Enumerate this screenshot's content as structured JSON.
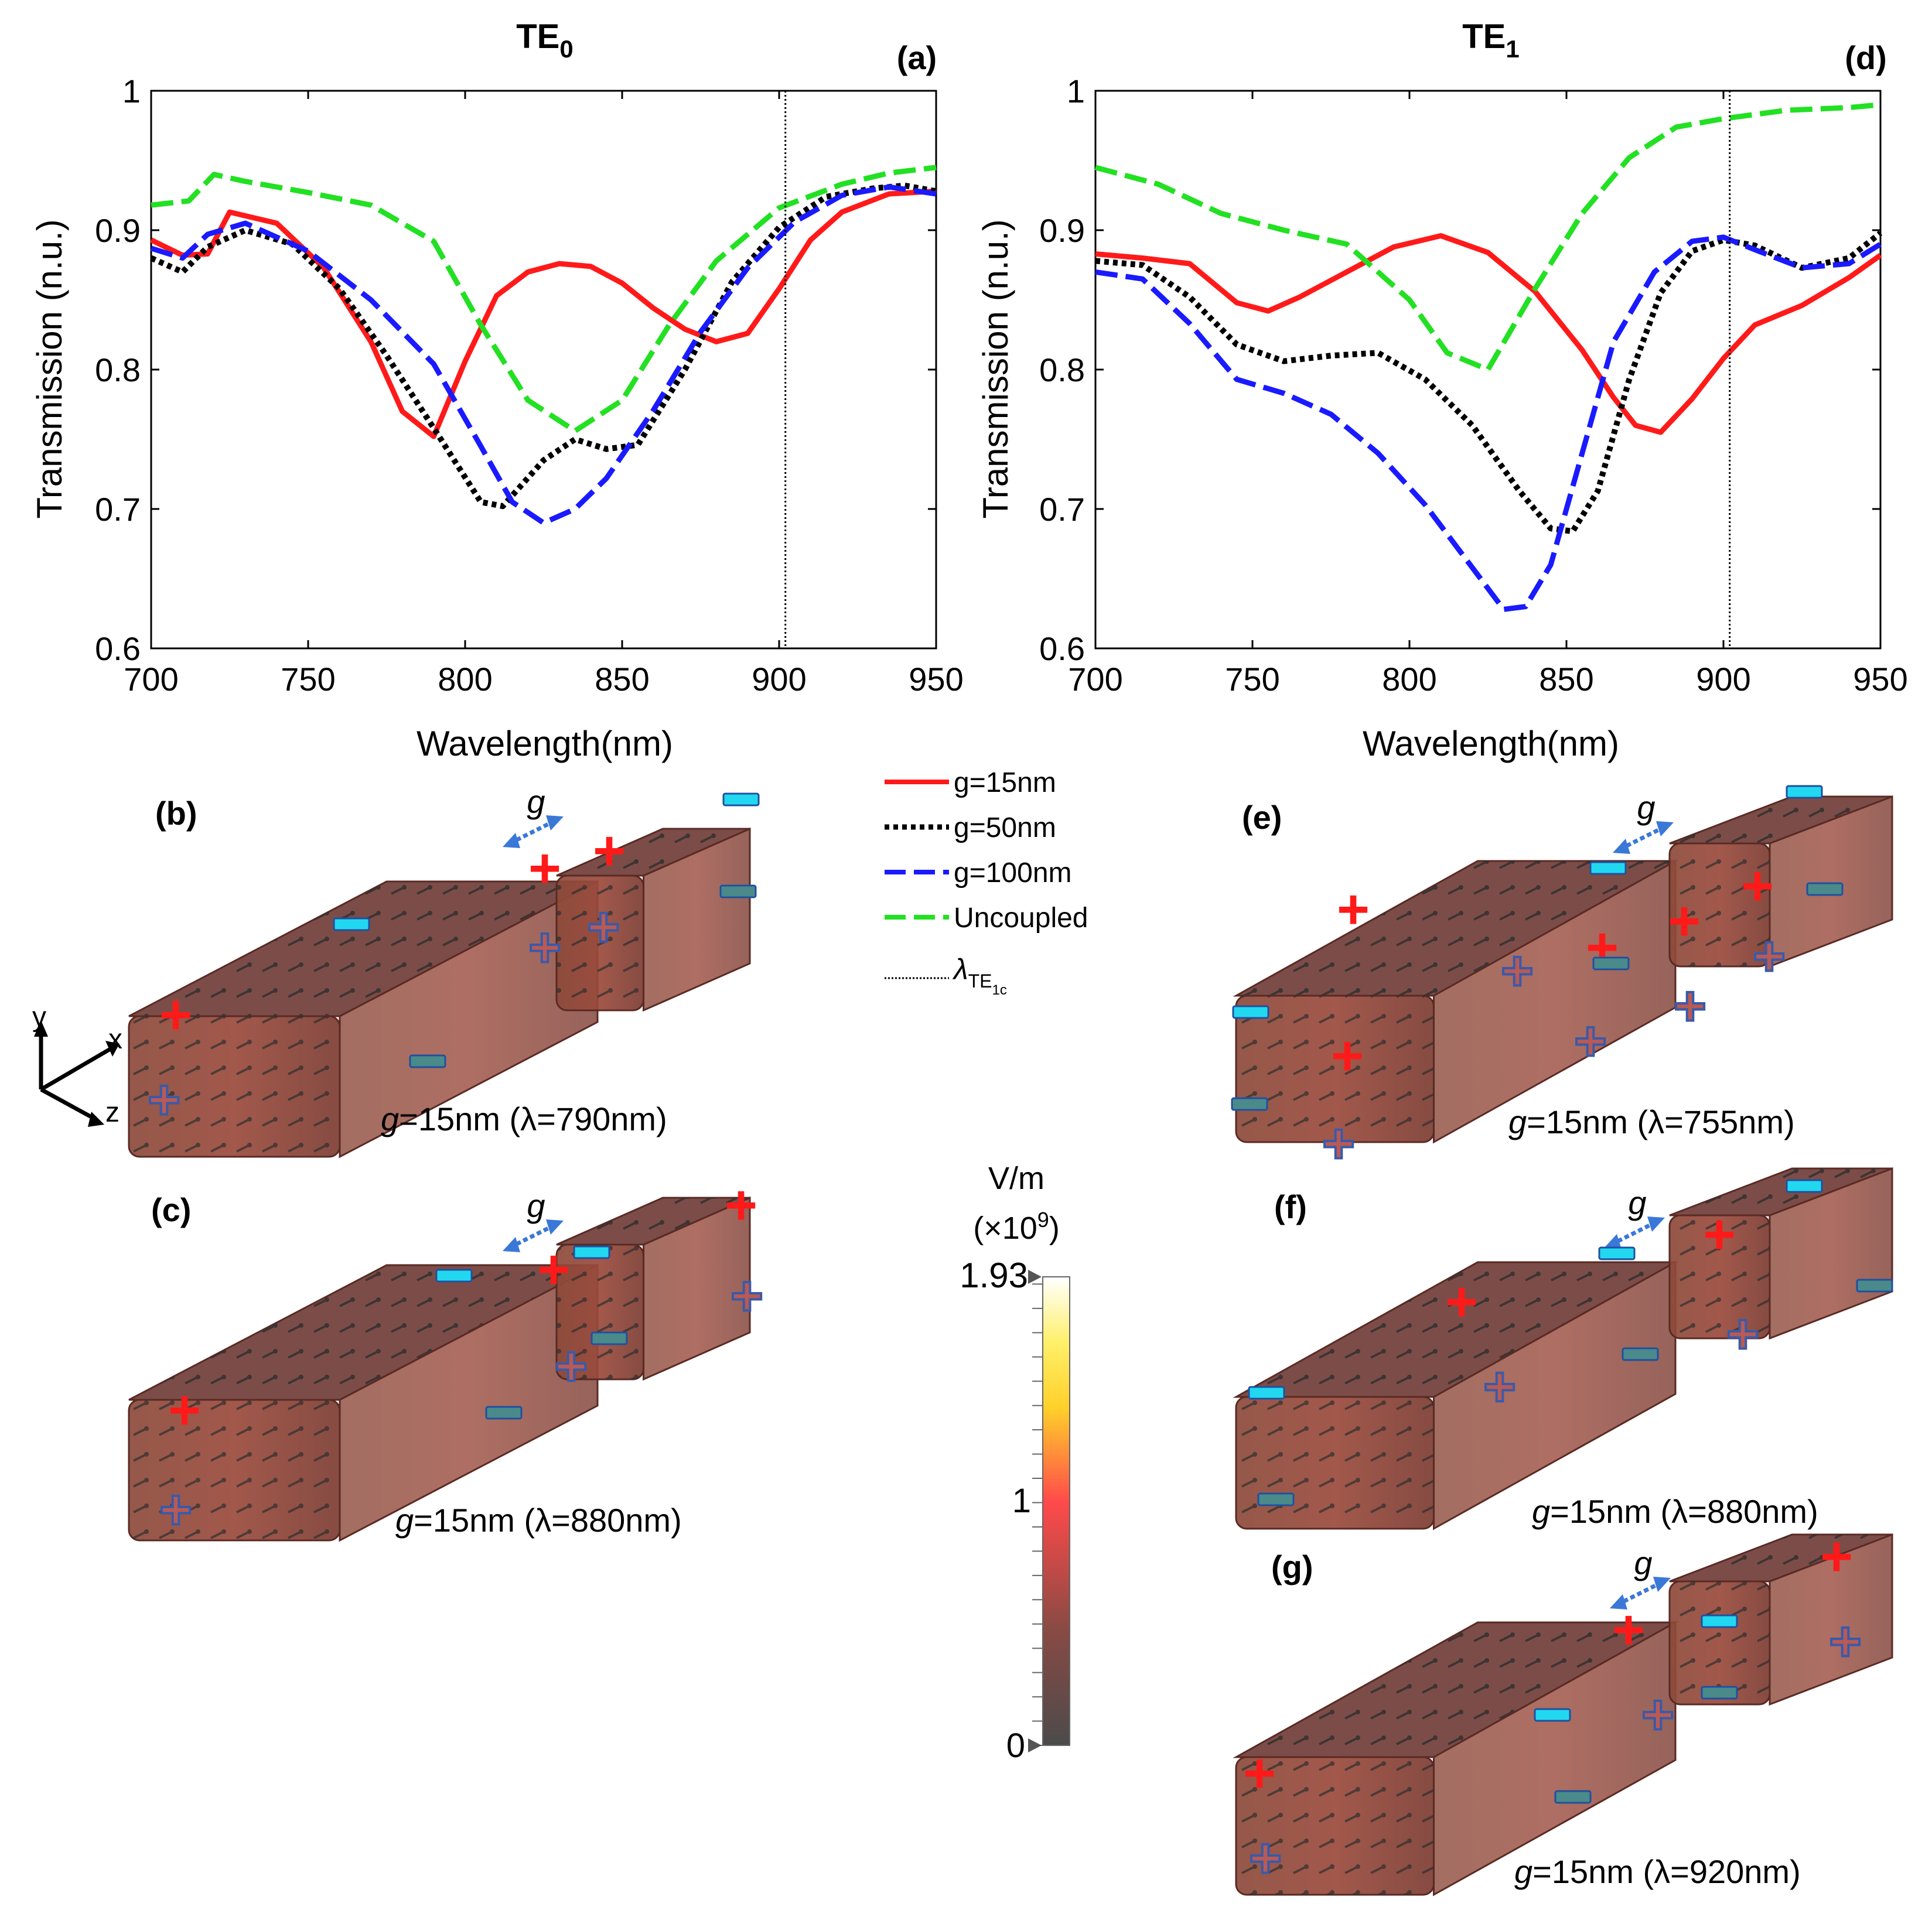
{
  "panels": {
    "a": {
      "letter": "(a)",
      "title": "TE",
      "title_sub": "0"
    },
    "d": {
      "letter": "(d)",
      "title": "TE",
      "title_sub": "1"
    },
    "b": {
      "letter": "(b)",
      "caption_g": "g",
      "caption_rest": "=15nm (λ=790nm)"
    },
    "c": {
      "letter": "(c)",
      "caption_g": "g",
      "caption_rest": "=15nm (λ=880nm)"
    },
    "e": {
      "letter": "(e)",
      "caption_g": "g",
      "caption_rest": "=15nm (λ=755nm)"
    },
    "f": {
      "letter": "(f)",
      "caption_g": "g",
      "caption_rest": "=15nm (λ=880nm)"
    },
    "g": {
      "letter": "(g)",
      "caption_g": "g",
      "caption_rest": "=15nm (λ=920nm)"
    }
  },
  "gap_label": "g",
  "axes_glyph": {
    "x": "x",
    "y": "y",
    "z": "z"
  },
  "legend": {
    "items": [
      "g=15nm",
      "g=50nm",
      "g=100nm",
      "Uncoupled"
    ],
    "lambda_main": "λ",
    "lambda_sub": "TE",
    "lambda_subsub": "1c"
  },
  "colorbar": {
    "unit": "V/m",
    "scale_prefix": "(×10",
    "scale_exp": "9",
    "scale_suffix": ")",
    "max_label": "1.93",
    "mid_label": "1",
    "min_label": "0",
    "range": [
      0,
      1.93
    ]
  },
  "charge_symbols": {
    "plus": "+",
    "minus": "−"
  },
  "colors": {
    "g15": "#ff1a1a",
    "g50": "#000000",
    "g100": "#1a1aff",
    "uncoupled": "#22e022",
    "plus_marker": "#ff1a1a",
    "minus_marker": "#22d8f0",
    "block_fill": "#7a3c34",
    "block_edge": "#5a2a24"
  },
  "chart_data": [
    {
      "id": "a",
      "type": "line",
      "title": "TE0",
      "xlabel": "Wavelength(nm)",
      "ylabel": "Transmission (n.u.)",
      "xlim": [
        700,
        950
      ],
      "ylim": [
        0.6,
        1
      ],
      "xticks": [
        700,
        750,
        800,
        850,
        900,
        950
      ],
      "yticks": [
        0.6,
        0.7,
        0.8,
        0.9,
        1
      ],
      "ytick_labels": [
        "0.6",
        "0.7",
        "0.8",
        "0.9",
        "1"
      ],
      "vline": 902,
      "series": [
        {
          "name": "g=15nm",
          "style": "solid",
          "x": [
            700,
            710,
            718,
            725,
            740,
            755,
            770,
            780,
            790,
            800,
            810,
            820,
            830,
            840,
            850,
            860,
            870,
            880,
            890,
            900,
            910,
            920,
            935,
            950
          ],
          "y": [
            0.893,
            0.882,
            0.883,
            0.913,
            0.905,
            0.873,
            0.82,
            0.77,
            0.752,
            0.806,
            0.853,
            0.87,
            0.876,
            0.874,
            0.862,
            0.844,
            0.829,
            0.82,
            0.826,
            0.858,
            0.893,
            0.913,
            0.926,
            0.928
          ]
        },
        {
          "name": "g=50nm",
          "style": "dotted",
          "x": [
            700,
            710,
            718,
            730,
            745,
            760,
            775,
            790,
            805,
            812,
            825,
            835,
            845,
            855,
            870,
            885,
            900,
            915,
            930,
            940,
            950
          ],
          "y": [
            0.88,
            0.87,
            0.888,
            0.9,
            0.89,
            0.858,
            0.81,
            0.758,
            0.705,
            0.702,
            0.735,
            0.75,
            0.743,
            0.746,
            0.8,
            0.863,
            0.902,
            0.924,
            0.93,
            0.932,
            0.928
          ]
        },
        {
          "name": "g=100nm",
          "style": "dashed",
          "x": [
            700,
            710,
            718,
            730,
            750,
            770,
            790,
            805,
            815,
            825,
            835,
            845,
            860,
            875,
            890,
            905,
            920,
            935,
            950
          ],
          "y": [
            0.887,
            0.88,
            0.897,
            0.905,
            0.885,
            0.85,
            0.804,
            0.745,
            0.705,
            0.69,
            0.7,
            0.722,
            0.771,
            0.827,
            0.873,
            0.906,
            0.925,
            0.931,
            0.926
          ]
        },
        {
          "name": "Uncoupled",
          "style": "dashed",
          "x": [
            700,
            712,
            720,
            730,
            750,
            770,
            790,
            805,
            820,
            835,
            850,
            865,
            880,
            900,
            920,
            935,
            950
          ],
          "y": [
            0.918,
            0.921,
            0.94,
            0.935,
            0.927,
            0.918,
            0.892,
            0.832,
            0.778,
            0.756,
            0.778,
            0.832,
            0.878,
            0.916,
            0.933,
            0.941,
            0.945
          ]
        }
      ]
    },
    {
      "id": "d",
      "type": "line",
      "title": "TE1",
      "xlabel": "Wavelength(nm)",
      "ylabel": "Transmission (n.u.)",
      "xlim": [
        700,
        950
      ],
      "ylim": [
        0.6,
        1
      ],
      "xticks": [
        700,
        750,
        800,
        850,
        900,
        950
      ],
      "yticks": [
        0.6,
        0.7,
        0.8,
        0.9,
        1
      ],
      "ytick_labels": [
        "0.6",
        "0.7",
        "0.8",
        "0.9",
        "1"
      ],
      "vline": 902,
      "series": [
        {
          "name": "g=15nm",
          "style": "solid",
          "x": [
            700,
            715,
            730,
            745,
            755,
            765,
            780,
            795,
            810,
            825,
            840,
            855,
            865,
            872,
            880,
            890,
            900,
            910,
            925,
            940,
            950
          ],
          "y": [
            0.883,
            0.88,
            0.876,
            0.848,
            0.842,
            0.852,
            0.87,
            0.888,
            0.896,
            0.884,
            0.856,
            0.814,
            0.78,
            0.76,
            0.755,
            0.779,
            0.808,
            0.832,
            0.846,
            0.866,
            0.882
          ]
        },
        {
          "name": "g=50nm",
          "style": "dotted",
          "x": [
            700,
            715,
            730,
            745,
            760,
            775,
            790,
            805,
            820,
            835,
            845,
            852,
            860,
            870,
            880,
            890,
            900,
            910,
            925,
            940,
            950
          ],
          "y": [
            0.878,
            0.875,
            0.852,
            0.818,
            0.806,
            0.81,
            0.812,
            0.793,
            0.76,
            0.713,
            0.686,
            0.684,
            0.713,
            0.793,
            0.855,
            0.885,
            0.893,
            0.889,
            0.873,
            0.88,
            0.898
          ]
        },
        {
          "name": "g=100nm",
          "style": "dashed",
          "x": [
            700,
            715,
            730,
            745,
            760,
            775,
            790,
            805,
            820,
            830,
            837,
            845,
            855,
            865,
            878,
            890,
            900,
            910,
            925,
            940,
            950
          ],
          "y": [
            0.87,
            0.865,
            0.833,
            0.793,
            0.783,
            0.768,
            0.74,
            0.703,
            0.658,
            0.628,
            0.63,
            0.66,
            0.74,
            0.82,
            0.87,
            0.892,
            0.895,
            0.886,
            0.873,
            0.876,
            0.89
          ]
        },
        {
          "name": "Uncoupled",
          "style": "dashed",
          "x": [
            700,
            720,
            740,
            760,
            780,
            800,
            812,
            825,
            840,
            855,
            870,
            885,
            900,
            920,
            940,
            950
          ],
          "y": [
            0.945,
            0.933,
            0.912,
            0.9,
            0.89,
            0.85,
            0.812,
            0.8,
            0.858,
            0.912,
            0.952,
            0.974,
            0.98,
            0.986,
            0.988,
            0.99
          ]
        }
      ]
    }
  ]
}
